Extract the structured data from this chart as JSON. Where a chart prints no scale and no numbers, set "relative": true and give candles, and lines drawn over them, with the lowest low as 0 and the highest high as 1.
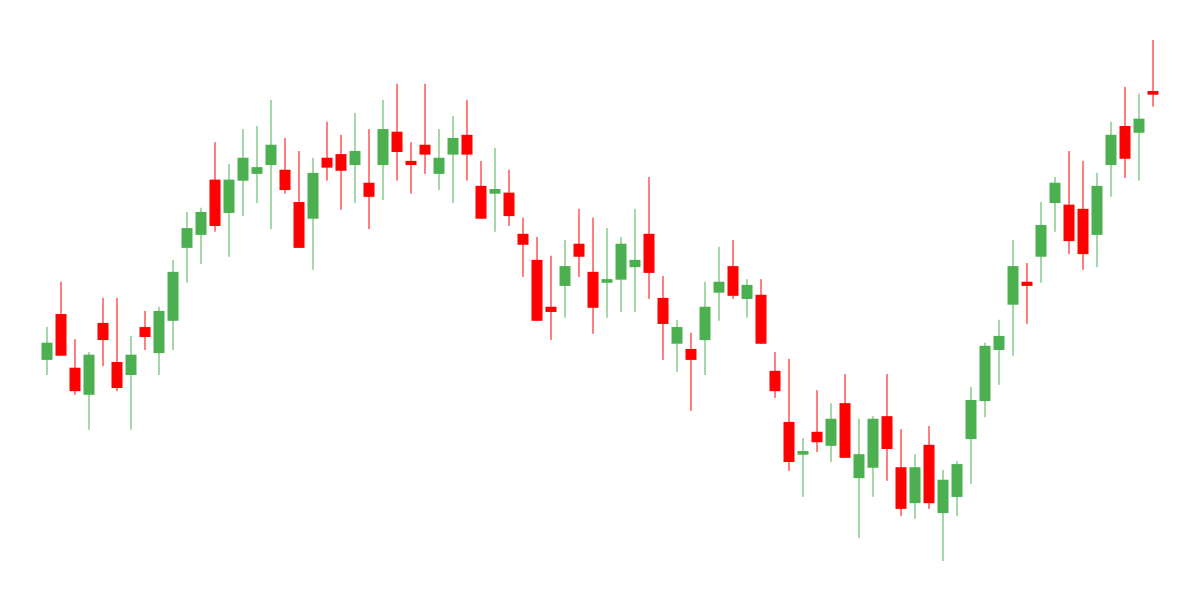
{
  "chart_data": {
    "type": "candlestick",
    "relative": true,
    "categories": [
      null,
      null,
      null,
      null,
      null,
      null,
      null,
      null,
      null,
      null,
      null,
      null,
      null,
      null,
      null,
      null,
      null,
      null,
      null,
      null,
      null,
      null,
      null,
      null,
      null,
      null,
      null,
      null,
      null,
      null,
      null,
      null,
      null,
      null,
      null,
      null,
      null,
      null,
      null,
      null,
      null,
      null,
      null,
      null,
      null,
      null,
      null,
      null,
      null,
      null,
      null,
      null,
      null,
      null,
      null,
      null,
      null,
      null,
      null,
      null,
      null,
      null,
      null,
      null,
      null,
      null,
      null,
      null,
      null,
      null,
      null,
      null,
      null,
      null,
      null,
      null,
      null,
      null,
      null,
      null
    ],
    "ohlc": [
      [
        0.386,
        0.449,
        0.357,
        0.419
      ],
      [
        0.474,
        0.536,
        0.394,
        0.394
      ],
      [
        0.371,
        0.426,
        0.319,
        0.326
      ],
      [
        0.319,
        0.401,
        0.252,
        0.396
      ],
      [
        0.457,
        0.505,
        0.374,
        0.424
      ],
      [
        0.382,
        0.505,
        0.326,
        0.332
      ],
      [
        0.357,
        0.432,
        0.252,
        0.396
      ],
      [
        0.449,
        0.48,
        0.405,
        0.43
      ],
      [
        0.399,
        0.488,
        0.357,
        0.48
      ],
      [
        0.461,
        0.578,
        0.405,
        0.555
      ],
      [
        0.601,
        0.67,
        0.534,
        0.639
      ],
      [
        0.626,
        0.678,
        0.57,
        0.67
      ],
      [
        0.732,
        0.804,
        0.632,
        0.643
      ],
      [
        0.668,
        0.762,
        0.584,
        0.732
      ],
      [
        0.73,
        0.829,
        0.662,
        0.774
      ],
      [
        0.743,
        0.835,
        0.687,
        0.756
      ],
      [
        0.76,
        0.885,
        0.637,
        0.799
      ],
      [
        0.751,
        0.812,
        0.705,
        0.712
      ],
      [
        0.689,
        0.787,
        0.601,
        0.601
      ],
      [
        0.657,
        0.774,
        0.559,
        0.745
      ],
      [
        0.774,
        0.843,
        0.73,
        0.755
      ],
      [
        0.781,
        0.818,
        0.674,
        0.749
      ],
      [
        0.76,
        0.86,
        0.687,
        0.787
      ],
      [
        0.726,
        0.829,
        0.637,
        0.699
      ],
      [
        0.76,
        0.885,
        0.693,
        0.829
      ],
      [
        0.824,
        0.916,
        0.73,
        0.785
      ],
      [
        0.768,
        0.804,
        0.705,
        0.76
      ],
      [
        0.799,
        0.916,
        0.743,
        0.78
      ],
      [
        0.743,
        0.829,
        0.712,
        0.774
      ],
      [
        0.78,
        0.854,
        0.687,
        0.812
      ],
      [
        0.818,
        0.885,
        0.73,
        0.78
      ],
      [
        0.72,
        0.768,
        0.657,
        0.657
      ],
      [
        0.705,
        0.793,
        0.632,
        0.714
      ],
      [
        0.707,
        0.751,
        0.643,
        0.662
      ],
      [
        0.628,
        0.659,
        0.545,
        0.607
      ],
      [
        0.578,
        0.622,
        0.461,
        0.461
      ],
      [
        0.488,
        0.586,
        0.424,
        0.478
      ],
      [
        0.528,
        0.616,
        0.467,
        0.566
      ],
      [
        0.609,
        0.676,
        0.545,
        0.584
      ],
      [
        0.555,
        0.659,
        0.436,
        0.486
      ],
      [
        0.534,
        0.639,
        0.467,
        0.541
      ],
      [
        0.54,
        0.622,
        0.478,
        0.609
      ],
      [
        0.564,
        0.676,
        0.478,
        0.578
      ],
      [
        0.628,
        0.737,
        0.503,
        0.553
      ],
      [
        0.505,
        0.547,
        0.386,
        0.455
      ],
      [
        0.417,
        0.463,
        0.363,
        0.449
      ],
      [
        0.407,
        0.438,
        0.288,
        0.386
      ],
      [
        0.424,
        0.536,
        0.357,
        0.488
      ],
      [
        0.515,
        0.603,
        0.461,
        0.536
      ],
      [
        0.566,
        0.616,
        0.503,
        0.509
      ],
      [
        0.503,
        0.541,
        0.467,
        0.53
      ],
      [
        0.511,
        0.541,
        0.417,
        0.417
      ],
      [
        0.365,
        0.401,
        0.313,
        0.326
      ],
      [
        0.267,
        0.388,
        0.173,
        0.19
      ],
      [
        0.204,
        0.236,
        0.123,
        0.211
      ],
      [
        0.248,
        0.328,
        0.209,
        0.228
      ],
      [
        0.221,
        0.303,
        0.19,
        0.273
      ],
      [
        0.303,
        0.359,
        0.198,
        0.198
      ],
      [
        0.159,
        0.273,
        0.044,
        0.205
      ],
      [
        0.179,
        0.278,
        0.123,
        0.273
      ],
      [
        0.278,
        0.359,
        0.154,
        0.215
      ],
      [
        0.18,
        0.253,
        0.086,
        0.1
      ],
      [
        0.111,
        0.205,
        0.081,
        0.18
      ],
      [
        0.223,
        0.259,
        0.1,
        0.111
      ],
      [
        0.092,
        0.175,
        0,
        0.156
      ],
      [
        0.123,
        0.192,
        0.086,
        0.186
      ],
      [
        0.234,
        0.334,
        0.148,
        0.309
      ],
      [
        0.307,
        0.419,
        0.276,
        0.413
      ],
      [
        0.405,
        0.463,
        0.338,
        0.432
      ],
      [
        0.492,
        0.616,
        0.394,
        0.566
      ],
      [
        0.536,
        0.572,
        0.455,
        0.528
      ],
      [
        0.584,
        0.689,
        0.534,
        0.645
      ],
      [
        0.687,
        0.737,
        0.632,
        0.726
      ],
      [
        0.684,
        0.787,
        0.589,
        0.614
      ],
      [
        0.676,
        0.768,
        0.559,
        0.589
      ],
      [
        0.626,
        0.745,
        0.564,
        0.72
      ],
      [
        0.76,
        0.843,
        0.699,
        0.818
      ],
      [
        0.835,
        0.91,
        0.735,
        0.772
      ],
      [
        0.822,
        0.897,
        0.73,
        0.849
      ],
      [
        0.902,
        1,
        0.872,
        0.895
      ]
    ],
    "colors": [
      "#4caf50",
      "#ff0000",
      "#ff0000",
      "#4caf50",
      "#ff0000",
      "#ff0000",
      "#4caf50",
      "#ff0000",
      "#4caf50",
      "#4caf50",
      "#4caf50",
      "#4caf50",
      "#ff0000",
      "#4caf50",
      "#4caf50",
      "#4caf50",
      "#4caf50",
      "#ff0000",
      "#ff0000",
      "#4caf50",
      "#ff0000",
      "#ff0000",
      "#4caf50",
      "#ff0000",
      "#4caf50",
      "#ff0000",
      "#ff0000",
      "#ff0000",
      "#4caf50",
      "#4caf50",
      "#ff0000",
      "#ff0000",
      "#4caf50",
      "#ff0000",
      "#ff0000",
      "#ff0000",
      "#ff0000",
      "#4caf50",
      "#ff0000",
      "#ff0000",
      "#4caf50",
      "#4caf50",
      "#4caf50",
      "#ff0000",
      "#ff0000",
      "#4caf50",
      "#ff0000",
      "#4caf50",
      "#4caf50",
      "#ff0000",
      "#4caf50",
      "#ff0000",
      "#ff0000",
      "#ff0000",
      "#4caf50",
      "#ff0000",
      "#4caf50",
      "#ff0000",
      "#4caf50",
      "#4caf50",
      "#ff0000",
      "#ff0000",
      "#4caf50",
      "#ff0000",
      "#4caf50",
      "#4caf50",
      "#4caf50",
      "#4caf50",
      "#4caf50",
      "#4caf50",
      "#ff0000",
      "#4caf50",
      "#4caf50",
      "#ff0000",
      "#ff0000",
      "#4caf50",
      "#4caf50",
      "#ff0000",
      "#4caf50",
      "#ff0000"
    ]
  }
}
